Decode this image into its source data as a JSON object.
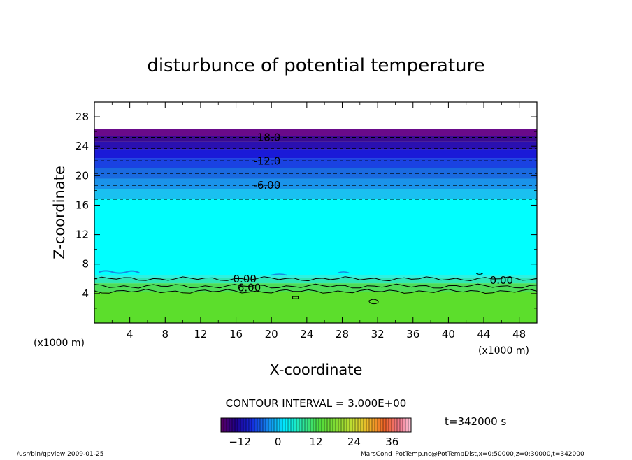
{
  "chart_data": {
    "type": "contour",
    "title": "disturbunce of potential temperature",
    "xlabel": "X-coordinate",
    "ylabel": "Z-coordinate",
    "x_unit_left": "(x1000 m)",
    "x_unit_right": "(x1000 m)",
    "xlim": [
      0,
      50
    ],
    "ylim": [
      0,
      30
    ],
    "x_ticks": [
      4,
      8,
      12,
      16,
      20,
      24,
      28,
      32,
      36,
      40,
      44,
      48
    ],
    "y_ticks": [
      4,
      8,
      12,
      16,
      20,
      24,
      28
    ],
    "contour_interval_text": "CONTOUR INTERVAL = 3.000E+00",
    "time_text": "t=342000 s",
    "contour_labels": [
      {
        "text": "-18.0",
        "x": 19.5,
        "z": 25.2
      },
      {
        "text": "-12.0",
        "x": 19.5,
        "z": 22.0
      },
      {
        "text": "-6.00",
        "x": 19.5,
        "z": 18.7
      },
      {
        "text": "0.00",
        "x": 17.0,
        "z": 6.0
      },
      {
        "text": "6.00",
        "x": 17.5,
        "z": 4.8
      },
      {
        "text": "0.00",
        "x": 46.0,
        "z": 5.8
      }
    ],
    "colorbar": {
      "range": [
        -18,
        42
      ],
      "ticks": [
        -12,
        0,
        12,
        24,
        36
      ]
    },
    "field_bands": [
      {
        "z0": 0.0,
        "z1": 4.2,
        "color": "#5cde2c"
      },
      {
        "z0": 4.2,
        "z1": 5.4,
        "color": "#4ddd58"
      },
      {
        "z0": 5.4,
        "z1": 6.1,
        "color": "#2fe7b5"
      },
      {
        "z0": 6.1,
        "z1": 6.5,
        "color": "#30f0e0"
      },
      {
        "z0": 6.5,
        "z1": 16.8,
        "color": "#00ffff"
      },
      {
        "z0": 16.8,
        "z1": 18.2,
        "color": "#1ac0f0"
      },
      {
        "z0": 18.2,
        "z1": 19.6,
        "color": "#1a93ea"
      },
      {
        "z0": 19.6,
        "z1": 21.0,
        "color": "#1a6ae0"
      },
      {
        "z0": 21.0,
        "z1": 22.4,
        "color": "#1a42e2"
      },
      {
        "z0": 22.4,
        "z1": 23.6,
        "color": "#1a1ad8"
      },
      {
        "z0": 23.6,
        "z1": 24.6,
        "color": "#2a10b0"
      },
      {
        "z0": 24.6,
        "z1": 25.4,
        "color": "#3a0a90"
      },
      {
        "z0": 25.4,
        "z1": 26.3,
        "color": "#6a0a8a"
      }
    ],
    "contour_levels_dashed_z": [
      16.8,
      18.7,
      20.3,
      22.0,
      23.7,
      25.2
    ],
    "contour_levels_solid_z": [
      6.0,
      5.0,
      4.3
    ],
    "footer_left": "/usr/bin/gpview  2009-01-25",
    "footer_right": "MarsCond_PotTemp.nc@PotTempDist,x=0:50000,z=0:30000,t=342000"
  }
}
